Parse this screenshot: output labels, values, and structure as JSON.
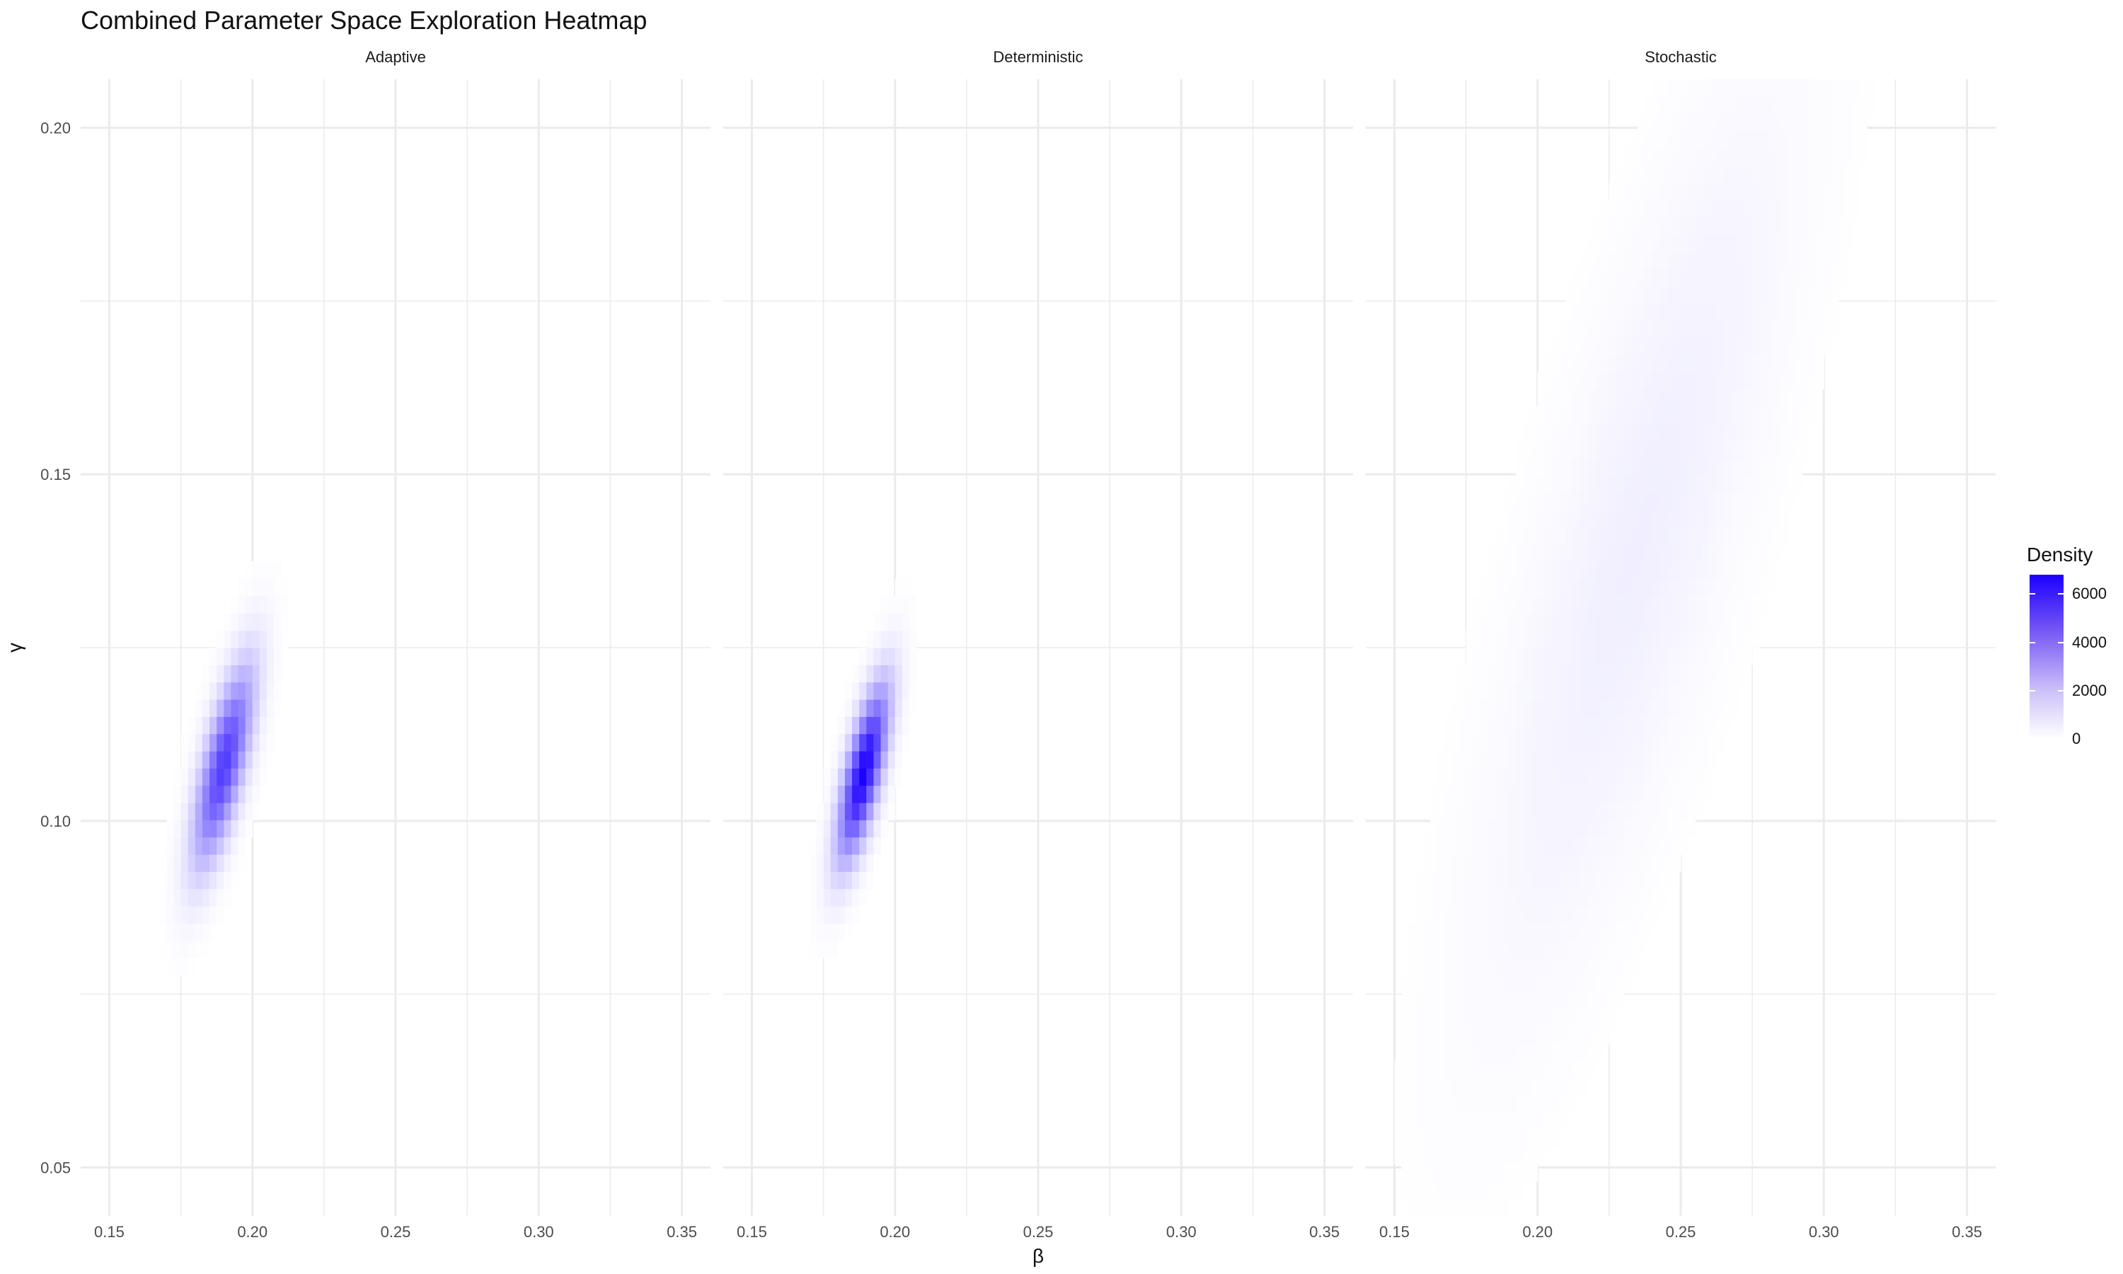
{
  "chart_data": {
    "type": "heatmap",
    "title": "Combined Parameter Space Exploration Heatmap",
    "xlabel": "β",
    "ylabel": "γ",
    "xlim": [
      0.14,
      0.36
    ],
    "ylim": [
      0.043,
      0.207
    ],
    "x_ticks": [
      "0.15",
      "0.20",
      "0.25",
      "0.30",
      "0.35"
    ],
    "x_tick_values": [
      0.15,
      0.2,
      0.25,
      0.3,
      0.35
    ],
    "y_ticks": [
      "0.05",
      "0.10",
      "0.15",
      "0.20"
    ],
    "y_tick_values": [
      0.05,
      0.1,
      0.15,
      0.2
    ],
    "grid": true,
    "colors": {
      "low": "#ffffff",
      "high": "#1c00ff",
      "grid": "#ebebeb"
    },
    "legend": {
      "title": "Density",
      "position": "right",
      "ticks": [
        "0",
        "2000",
        "4000",
        "6000"
      ],
      "tick_values": [
        0,
        2000,
        4000,
        6000
      ],
      "max": 6800
    },
    "facets": [
      {
        "label": "Adaptive",
        "peak_density": 5200,
        "center": [
          0.19,
          0.108
        ],
        "sd_major": 0.011,
        "sd_minor": 0.0042,
        "angle_deg": 57
      },
      {
        "label": "Deterministic",
        "peak_density": 6800,
        "center": [
          0.189,
          0.107
        ],
        "sd_major": 0.0095,
        "sd_minor": 0.0036,
        "angle_deg": 58
      },
      {
        "label": "Stochastic",
        "peak_density": 420,
        "center": [
          0.235,
          0.14
        ],
        "sd_major": 0.055,
        "sd_minor": 0.018,
        "angle_deg": 52
      }
    ]
  }
}
